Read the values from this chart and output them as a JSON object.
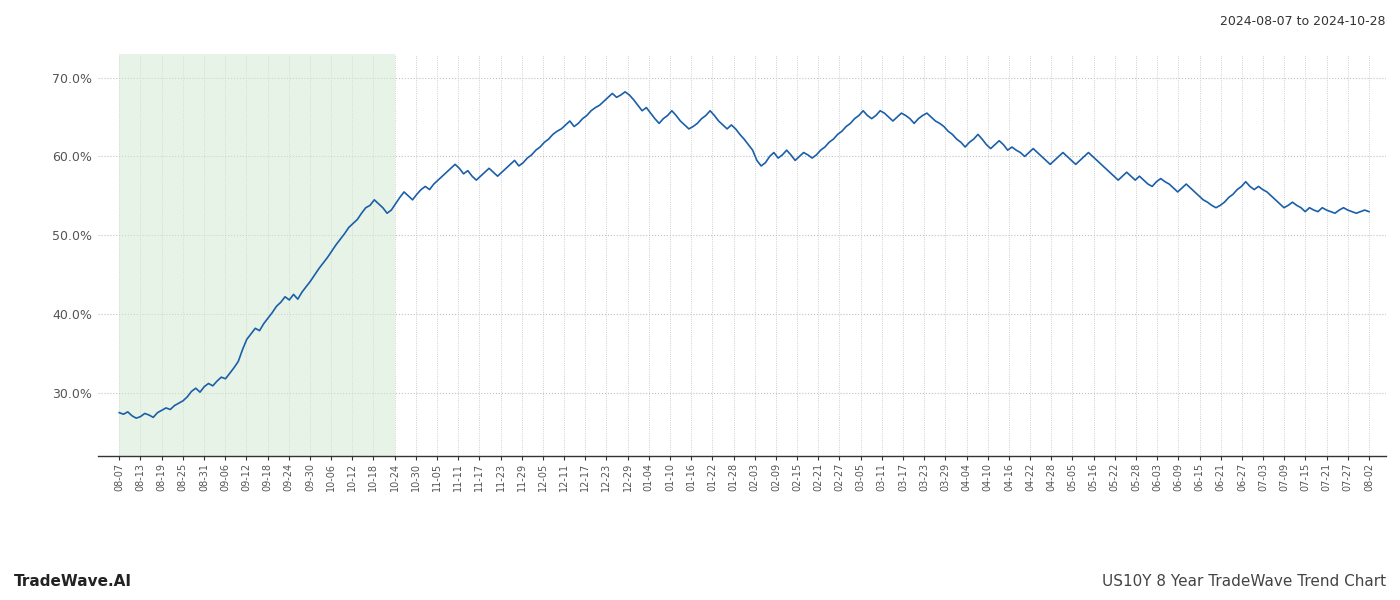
{
  "title_top_right": "2024-08-07 to 2024-10-28",
  "title_bottom_left": "TradeWave.AI",
  "title_bottom_right": "US10Y 8 Year TradeWave Trend Chart",
  "line_color": "#1a5fa8",
  "line_width": 1.2,
  "bg_color": "#ffffff",
  "grid_color": "#c0c0c0",
  "highlight_color": "#d4ead4",
  "highlight_alpha": 0.55,
  "ylim": [
    22.0,
    73.0
  ],
  "yticks": [
    30.0,
    40.0,
    50.0,
    60.0,
    70.0
  ],
  "x_labels": [
    "08-07",
    "08-13",
    "08-19",
    "08-25",
    "08-31",
    "09-06",
    "09-12",
    "09-18",
    "09-24",
    "09-30",
    "10-06",
    "10-12",
    "10-18",
    "10-24",
    "10-30",
    "11-05",
    "11-11",
    "11-17",
    "11-23",
    "11-29",
    "12-05",
    "12-11",
    "12-17",
    "12-23",
    "12-29",
    "01-04",
    "01-10",
    "01-16",
    "01-22",
    "01-28",
    "02-03",
    "02-09",
    "02-15",
    "02-21",
    "02-27",
    "03-05",
    "03-11",
    "03-17",
    "03-23",
    "03-29",
    "04-04",
    "04-10",
    "04-16",
    "04-22",
    "04-28",
    "05-05",
    "05-16",
    "05-22",
    "05-28",
    "06-03",
    "06-09",
    "06-15",
    "06-21",
    "06-27",
    "07-03",
    "07-09",
    "07-15",
    "07-21",
    "07-27",
    "08-02"
  ],
  "highlight_start_label": "08-07",
  "highlight_end_label": "10-24",
  "y_values": [
    27.5,
    27.3,
    27.6,
    27.1,
    26.8,
    27.0,
    27.4,
    27.2,
    26.9,
    27.5,
    27.8,
    28.1,
    27.9,
    28.4,
    28.7,
    29.0,
    29.5,
    30.2,
    30.6,
    30.1,
    30.8,
    31.2,
    30.9,
    31.5,
    32.0,
    31.8,
    32.5,
    33.2,
    34.0,
    35.5,
    36.8,
    37.5,
    38.2,
    37.9,
    38.8,
    39.5,
    40.2,
    41.0,
    41.5,
    42.2,
    41.8,
    42.5,
    41.9,
    42.8,
    43.5,
    44.2,
    45.0,
    45.8,
    46.5,
    47.2,
    48.0,
    48.8,
    49.5,
    50.2,
    51.0,
    51.5,
    52.0,
    52.8,
    53.5,
    53.8,
    54.5,
    54.0,
    53.5,
    52.8,
    53.2,
    54.0,
    54.8,
    55.5,
    55.0,
    54.5,
    55.2,
    55.8,
    56.2,
    55.8,
    56.5,
    57.0,
    57.5,
    58.0,
    58.5,
    59.0,
    58.5,
    57.8,
    58.2,
    57.5,
    57.0,
    57.5,
    58.0,
    58.5,
    58.0,
    57.5,
    58.0,
    58.5,
    59.0,
    59.5,
    58.8,
    59.2,
    59.8,
    60.2,
    60.8,
    61.2,
    61.8,
    62.2,
    62.8,
    63.2,
    63.5,
    64.0,
    64.5,
    63.8,
    64.2,
    64.8,
    65.2,
    65.8,
    66.2,
    66.5,
    67.0,
    67.5,
    68.0,
    67.5,
    67.8,
    68.2,
    67.8,
    67.2,
    66.5,
    65.8,
    66.2,
    65.5,
    64.8,
    64.2,
    64.8,
    65.2,
    65.8,
    65.2,
    64.5,
    64.0,
    63.5,
    63.8,
    64.2,
    64.8,
    65.2,
    65.8,
    65.2,
    64.5,
    64.0,
    63.5,
    64.0,
    63.5,
    62.8,
    62.2,
    61.5,
    60.8,
    59.5,
    58.8,
    59.2,
    60.0,
    60.5,
    59.8,
    60.2,
    60.8,
    60.2,
    59.5,
    60.0,
    60.5,
    60.2,
    59.8,
    60.2,
    60.8,
    61.2,
    61.8,
    62.2,
    62.8,
    63.2,
    63.8,
    64.2,
    64.8,
    65.2,
    65.8,
    65.2,
    64.8,
    65.2,
    65.8,
    65.5,
    65.0,
    64.5,
    65.0,
    65.5,
    65.2,
    64.8,
    64.2,
    64.8,
    65.2,
    65.5,
    65.0,
    64.5,
    64.2,
    63.8,
    63.2,
    62.8,
    62.2,
    61.8,
    61.2,
    61.8,
    62.2,
    62.8,
    62.2,
    61.5,
    61.0,
    61.5,
    62.0,
    61.5,
    60.8,
    61.2,
    60.8,
    60.5,
    60.0,
    60.5,
    61.0,
    60.5,
    60.0,
    59.5,
    59.0,
    59.5,
    60.0,
    60.5,
    60.0,
    59.5,
    59.0,
    59.5,
    60.0,
    60.5,
    60.0,
    59.5,
    59.0,
    58.5,
    58.0,
    57.5,
    57.0,
    57.5,
    58.0,
    57.5,
    57.0,
    57.5,
    57.0,
    56.5,
    56.2,
    56.8,
    57.2,
    56.8,
    56.5,
    56.0,
    55.5,
    56.0,
    56.5,
    56.0,
    55.5,
    55.0,
    54.5,
    54.2,
    53.8,
    53.5,
    53.8,
    54.2,
    54.8,
    55.2,
    55.8,
    56.2,
    56.8,
    56.2,
    55.8,
    56.2,
    55.8,
    55.5,
    55.0,
    54.5,
    54.0,
    53.5,
    53.8,
    54.2,
    53.8,
    53.5,
    53.0,
    53.5,
    53.2,
    53.0,
    53.5,
    53.2,
    53.0,
    52.8,
    53.2,
    53.5,
    53.2,
    53.0,
    52.8,
    53.0,
    53.2,
    53.0
  ]
}
